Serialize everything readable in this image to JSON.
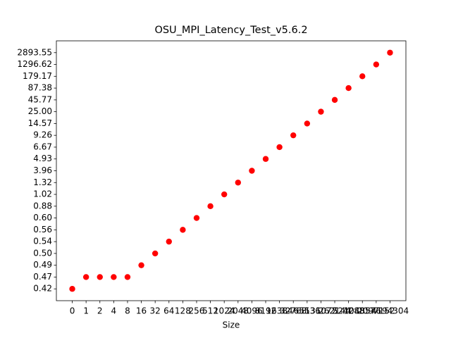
{
  "chart_data": {
    "type": "scatter",
    "title": "OSU_MPI_Latency_Test_v5.6.2",
    "x_label": "Size",
    "categories": [
      "0",
      "1",
      "2",
      "4",
      "8",
      "16",
      "32",
      "64",
      "128",
      "256",
      "512",
      "1024",
      "2048",
      "4096",
      "8192",
      "16384",
      "32768",
      "65536",
      "131072",
      "262144",
      "524288",
      "1048576",
      "2097152",
      "4194304"
    ],
    "values": [
      0.42,
      0.47,
      0.47,
      0.47,
      0.47,
      0.49,
      0.5,
      0.54,
      0.56,
      0.6,
      0.88,
      1.02,
      1.32,
      3.96,
      4.93,
      6.67,
      9.26,
      14.57,
      25,
      45.77,
      87.38,
      179.17,
      1296.62,
      2893.55
    ],
    "color": "#ff0000",
    "yticks": [
      0.42,
      0.47,
      0.49,
      {
        "value": 0.5,
        "label": "0.50"
      },
      0.54,
      0.56,
      {
        "value": 0.6,
        "label": "0.60"
      },
      0.88,
      1.02,
      1.32,
      3.96,
      4.93,
      6.67,
      9.26,
      14.57,
      {
        "value": 25,
        "label": "25.00"
      },
      45.77,
      87.38,
      179.17,
      1296.62,
      2893.55
    ]
  }
}
